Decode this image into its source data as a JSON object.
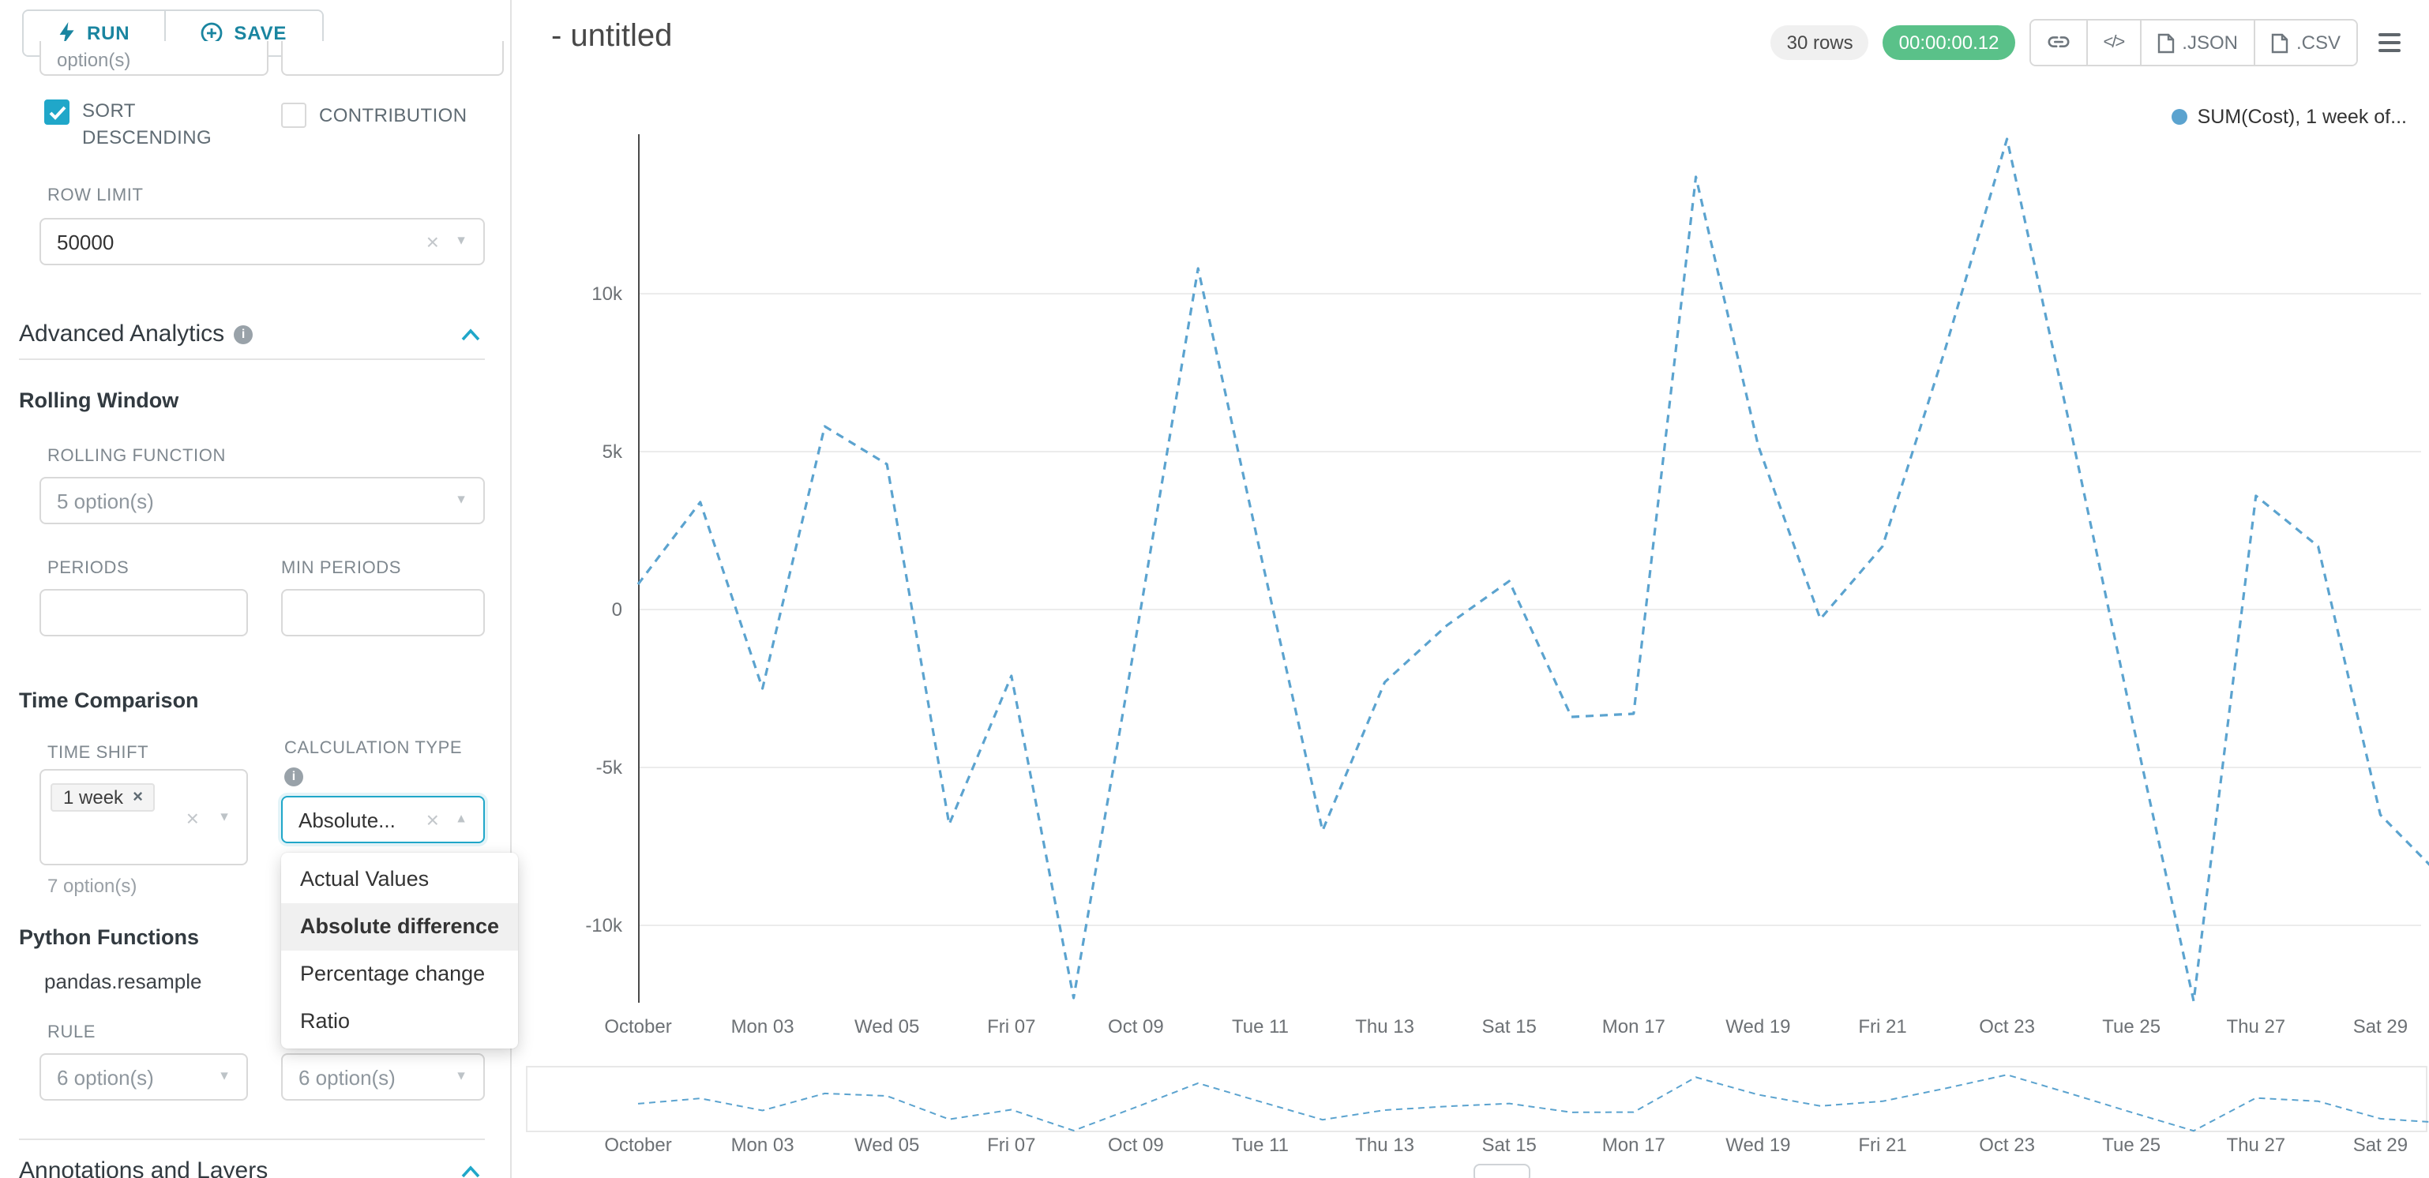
{
  "toolbar": {
    "run": "RUN",
    "save": "SAVE"
  },
  "panel": {
    "cropped_select_text": "option(s)",
    "sort_descending": "SORT DESCENDING",
    "contribution": "CONTRIBUTION",
    "row_limit": {
      "label": "ROW LIMIT",
      "value": "50000"
    },
    "sections": {
      "advanced_analytics": "Advanced Analytics",
      "annotations": "Annotations and Layers"
    },
    "rolling_window": {
      "title": "Rolling Window",
      "rolling_function_label": "ROLLING FUNCTION",
      "rolling_function_value": "5 option(s)",
      "periods_label": "PERIODS",
      "min_periods_label": "MIN PERIODS"
    },
    "time_comparison": {
      "title": "Time Comparison",
      "time_shift_label": "TIME SHIFT",
      "time_shift_tag": "1 week",
      "time_shift_hint": "7 option(s)",
      "calculation_type_label": "CALCULATION TYPE",
      "calculation_type_value": "Absolute...",
      "options": [
        "Actual Values",
        "Absolute difference",
        "Percentage change",
        "Ratio"
      ],
      "selected_option": "Absolute difference"
    },
    "python_functions": {
      "title": "Python Functions",
      "function": "pandas.resample",
      "rule_label": "RULE",
      "rule_value": "6 option(s)",
      "resample_method_value": "6 option(s)"
    }
  },
  "header": {
    "title": "- untitled",
    "rows_badge": "30 rows",
    "timer": "00:00:00.12",
    "json_label": ".JSON",
    "csv_label": ".CSV"
  },
  "chart_data": {
    "type": "line",
    "title": "",
    "legend_label": "SUM(Cost), 1 week of...",
    "legend_position": "top-right",
    "line_color": "#5BA3CF",
    "line_style": "dashed",
    "grid": true,
    "ylim": [
      -13000,
      15000
    ],
    "y_ticks": [
      {
        "label": "10k",
        "value": 10000
      },
      {
        "label": "5k",
        "value": 5000
      },
      {
        "label": "0",
        "value": 0
      },
      {
        "label": "-5k",
        "value": -5000
      },
      {
        "label": "-10k",
        "value": -10000
      }
    ],
    "x_tick_labels": [
      "October",
      "Mon 03",
      "Wed 05",
      "Fri 07",
      "Oct 09",
      "Tue 11",
      "Thu 13",
      "Sat 15",
      "Mon 17",
      "Wed 19",
      "Fri 21",
      "Oct 23",
      "Tue 25",
      "Thu 27",
      "Sat 29"
    ],
    "x": [
      "Oct 01",
      "Oct 02",
      "Oct 03",
      "Oct 04",
      "Oct 05",
      "Oct 06",
      "Oct 07",
      "Oct 08",
      "Oct 09",
      "Oct 10",
      "Oct 11",
      "Oct 12",
      "Oct 13",
      "Oct 14",
      "Oct 15",
      "Oct 16",
      "Oct 17",
      "Oct 18",
      "Oct 19",
      "Oct 20",
      "Oct 21",
      "Oct 22",
      "Oct 23",
      "Oct 24",
      "Oct 25",
      "Oct 26",
      "Oct 27",
      "Oct 28",
      "Oct 29",
      "Oct 30"
    ],
    "series": [
      {
        "name": "SUM(Cost), 1 week of...",
        "values": [
          800,
          3400,
          -2500,
          5800,
          4600,
          -6800,
          -2100,
          -12300,
          -900,
          10800,
          1800,
          -7000,
          -2300,
          -500,
          900,
          -3400,
          -3300,
          13700,
          5200,
          -300,
          2000,
          8200,
          14900,
          5900,
          -3400,
          -12400,
          3600,
          2000,
          -6500,
          -8500
        ]
      }
    ]
  }
}
